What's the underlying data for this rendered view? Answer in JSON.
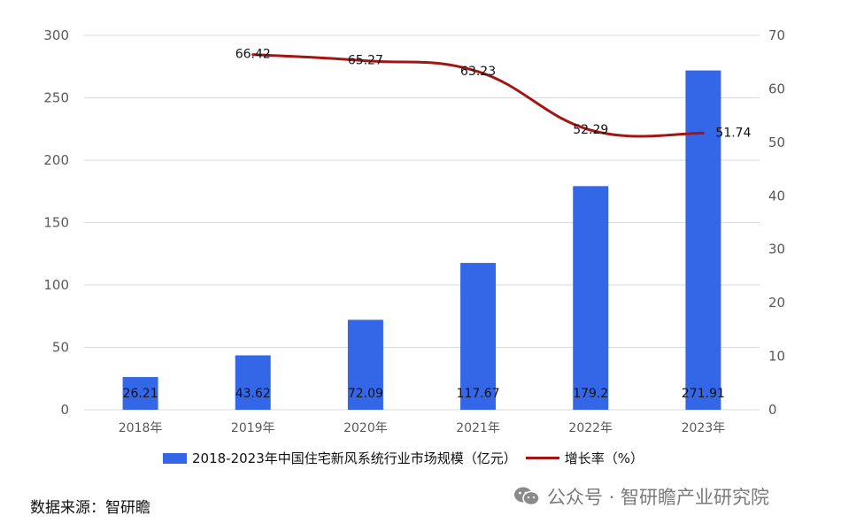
{
  "colors": {
    "bar": "#3467E8",
    "line": "#A31515",
    "grid": "#D9D9D9",
    "axis_text": "#595959"
  },
  "chart_data": {
    "type": "bar",
    "categories": [
      "2018年",
      "2019年",
      "2020年",
      "2021年",
      "2022年",
      "2023年"
    ],
    "series": [
      {
        "name": "2018-2023年中国住宅新风系统行业市场规模（亿元）",
        "type": "bar",
        "axis": "left",
        "values": [
          26.21,
          43.62,
          72.09,
          117.67,
          179.2,
          271.91
        ],
        "labels": [
          "26.21",
          "43.62",
          "72.09",
          "117.67",
          "179.2",
          "271.91"
        ]
      },
      {
        "name": "增长率（%）",
        "type": "line",
        "axis": "right",
        "values": [
          null,
          66.42,
          65.27,
          63.23,
          52.29,
          51.74
        ],
        "labels": [
          "",
          "66.42",
          "65.27",
          "63.23",
          "52.29",
          "51.74"
        ]
      }
    ],
    "ylim_left": [
      0,
      300
    ],
    "yticks_left": [
      "0",
      "50",
      "100",
      "150",
      "200",
      "250",
      "300"
    ],
    "ylim_right": [
      0,
      70
    ],
    "yticks_right": [
      "0",
      "10",
      "20",
      "30",
      "40",
      "50",
      "60",
      "70"
    ],
    "grid": true,
    "legend_position": "bottom"
  },
  "source_text": "数据来源：智研瞻",
  "watermark": {
    "icon": "wechat-icon",
    "text": "公众号 · 智研瞻产业研究院"
  }
}
